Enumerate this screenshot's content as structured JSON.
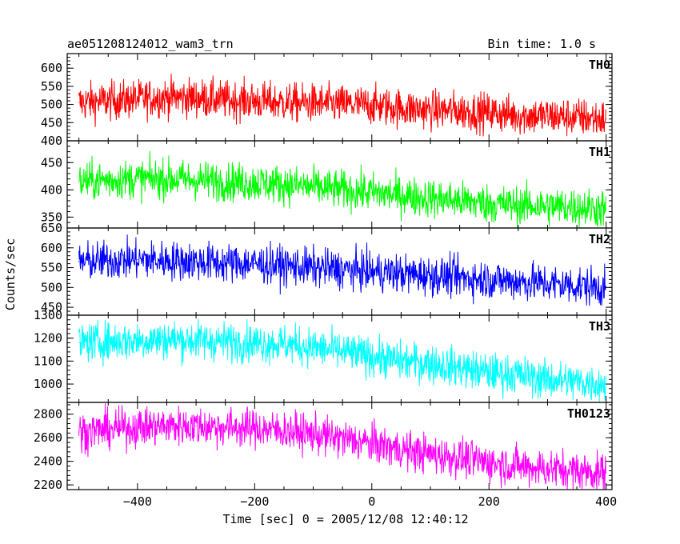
{
  "header": {
    "left_title": "ae051208124012_wam3_trn",
    "right_title": "Bin time: 1.0 s"
  },
  "chart_data": {
    "type": "line",
    "ylabel": "Counts/sec",
    "xlabel": "Time [sec] 0 = 2005/12/08 12:40:12",
    "xlim": [
      -520,
      410
    ],
    "x_ticks": [
      -400,
      -200,
      0,
      200,
      400
    ],
    "x_tick_labels": [
      "−400",
      "−200",
      "0",
      "200",
      "400"
    ],
    "series": [
      {
        "name": "TH0",
        "color": "#ff0000",
        "ylim": [
          400,
          640
        ],
        "y_ticks": [
          400,
          450,
          500,
          550,
          600
        ],
        "x": [
          -500,
          -450,
          -400,
          -350,
          -300,
          -250,
          -200,
          -150,
          -100,
          -50,
          0,
          50,
          100,
          150,
          200,
          250,
          300,
          350,
          400
        ],
        "values": [
          505,
          510,
          515,
          520,
          518,
          512,
          510,
          505,
          503,
          500,
          498,
          490,
          485,
          482,
          478,
          470,
          468,
          465,
          460
        ]
      },
      {
        "name": "TH1",
        "color": "#00ff00",
        "ylim": [
          330,
          490
        ],
        "y_ticks": [
          350,
          400,
          450
        ],
        "x": [
          -500,
          -450,
          -400,
          -350,
          -300,
          -250,
          -200,
          -150,
          -100,
          -50,
          0,
          50,
          100,
          150,
          200,
          250,
          300,
          350,
          400
        ],
        "values": [
          415,
          418,
          420,
          420,
          418,
          415,
          413,
          410,
          405,
          400,
          395,
          390,
          385,
          380,
          375,
          372,
          370,
          368,
          365
        ]
      },
      {
        "name": "TH2",
        "color": "#0000ff",
        "ylim": [
          430,
          650
        ],
        "y_ticks": [
          450,
          500,
          550,
          600,
          650
        ],
        "x": [
          -500,
          -450,
          -400,
          -350,
          -300,
          -250,
          -200,
          -150,
          -100,
          -50,
          0,
          50,
          100,
          150,
          200,
          250,
          300,
          350,
          400
        ],
        "values": [
          565,
          568,
          570,
          568,
          565,
          562,
          560,
          555,
          550,
          545,
          540,
          535,
          530,
          525,
          520,
          515,
          510,
          505,
          500
        ]
      },
      {
        "name": "TH3",
        "color": "#00ffff",
        "ylim": [
          920,
          1300
        ],
        "y_ticks": [
          1000,
          1100,
          1200,
          1300
        ],
        "x": [
          -500,
          -450,
          -400,
          -350,
          -300,
          -250,
          -200,
          -150,
          -100,
          -50,
          0,
          50,
          100,
          150,
          200,
          250,
          300,
          350,
          400
        ],
        "values": [
          1180,
          1185,
          1190,
          1195,
          1190,
          1185,
          1180,
          1175,
          1160,
          1140,
          1120,
          1100,
          1090,
          1070,
          1050,
          1040,
          1020,
          1010,
          1000
        ]
      },
      {
        "name": "TH0123",
        "color": "#ff00ff",
        "ylim": [
          2160,
          2900
        ],
        "y_ticks": [
          2200,
          2400,
          2600,
          2800
        ],
        "x": [
          -500,
          -450,
          -400,
          -350,
          -300,
          -250,
          -200,
          -150,
          -100,
          -50,
          0,
          50,
          100,
          150,
          200,
          250,
          300,
          350,
          400
        ],
        "values": [
          2650,
          2670,
          2690,
          2700,
          2700,
          2690,
          2680,
          2660,
          2630,
          2590,
          2550,
          2500,
          2460,
          2430,
          2390,
          2360,
          2340,
          2320,
          2300
        ]
      }
    ],
    "grid": false,
    "legend": "none"
  }
}
